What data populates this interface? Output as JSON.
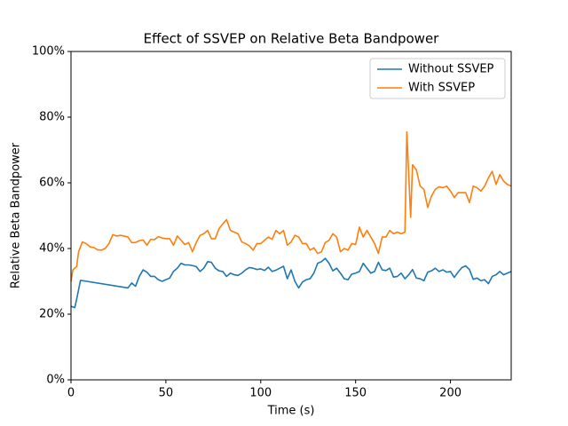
{
  "chart_data": {
    "type": "line",
    "title": "Effect of SSVEP on Relative Beta Bandpower",
    "x_label": "Time (s)",
    "y_label": "Relative Beta Bandpower",
    "xlim": [
      0,
      232
    ],
    "ylim": [
      0,
      100
    ],
    "xticks": [
      0,
      50,
      100,
      150,
      200
    ],
    "yticks": [
      {
        "value": 0,
        "label": "0%"
      },
      {
        "value": 20,
        "label": "20%"
      },
      {
        "value": 40,
        "label": "40%"
      },
      {
        "value": 60,
        "label": "60%"
      },
      {
        "value": 80,
        "label": "80%"
      },
      {
        "value": 100,
        "label": "100%"
      }
    ],
    "legend": "upper right",
    "series": [
      {
        "name": "Without SSVEP",
        "color": "#1f77b4",
        "x": [
          0,
          2,
          3,
          5,
          30,
          32,
          34,
          36,
          38,
          40,
          42,
          44,
          46,
          48,
          50,
          52,
          54,
          56,
          58,
          60,
          62,
          64,
          66,
          68,
          70,
          72,
          74,
          76,
          78,
          80,
          82,
          84,
          86,
          88,
          90,
          92,
          94,
          96,
          98,
          100,
          102,
          104,
          106,
          108,
          110,
          112,
          114,
          116,
          118,
          120,
          122,
          124,
          126,
          128,
          130,
          132,
          134,
          136,
          138,
          140,
          142,
          144,
          146,
          148,
          150,
          152,
          154,
          156,
          158,
          160,
          162,
          164,
          166,
          168,
          170,
          172,
          174,
          176,
          178,
          180,
          182,
          184,
          186,
          188,
          190,
          192,
          194,
          196,
          198,
          200,
          202,
          204,
          206,
          208,
          210,
          212,
          214,
          216,
          218,
          220,
          222,
          224,
          226,
          228,
          230,
          232
        ],
        "values": [
          22.4,
          22,
          24.6,
          30.3,
          28,
          29.5,
          28.5,
          31.5,
          33.5,
          32.8,
          31.5,
          31.5,
          30.5,
          30,
          30.5,
          31,
          33,
          34,
          35.5,
          35,
          35,
          34.8,
          34.5,
          33,
          34,
          36,
          35.8,
          34,
          33.2,
          33,
          31.5,
          32.5,
          32,
          31.8,
          32.5,
          33.5,
          34.2,
          34,
          33.6,
          33.8,
          33.3,
          34.3,
          33,
          33.4,
          34,
          34.6,
          30.8,
          33.5,
          30,
          28,
          29.8,
          30.5,
          30.8,
          32.5,
          35.5,
          36,
          37,
          35.5,
          33.2,
          34,
          32.5,
          30.8,
          30.5,
          32.2,
          32.5,
          33,
          35.5,
          34,
          32.5,
          33,
          35.8,
          33.5,
          33.3,
          34,
          31.3,
          31.5,
          32.5,
          30.8,
          32,
          33.6,
          31,
          30.8,
          30.2,
          32.8,
          33.2,
          34,
          33,
          33.5,
          32.8,
          33,
          31.2,
          32.8,
          34.2,
          34.7,
          33.6,
          30.6,
          31,
          30.2,
          30.5,
          29.3,
          31.5,
          32,
          33,
          32,
          32.5,
          33
        ]
      },
      {
        "name": "With SSVEP",
        "color": "#ff7f0e",
        "x": [
          0,
          1,
          2,
          3,
          4,
          6,
          8,
          10,
          12,
          14,
          16,
          18,
          20,
          22,
          24,
          26,
          28,
          30,
          32,
          34,
          36,
          38,
          40,
          42,
          44,
          46,
          48,
          50,
          52,
          54,
          56,
          58,
          60,
          62,
          64,
          66,
          68,
          70,
          72,
          74,
          76,
          78,
          80,
          82,
          84,
          86,
          88,
          90,
          92,
          94,
          96,
          98,
          100,
          102,
          104,
          106,
          108,
          110,
          112,
          114,
          116,
          118,
          120,
          122,
          124,
          126,
          128,
          130,
          132,
          134,
          136,
          138,
          140,
          142,
          144,
          146,
          148,
          150,
          152,
          154,
          156,
          158,
          160,
          162,
          164,
          166,
          168,
          170,
          172,
          174,
          176,
          177,
          179,
          180,
          182,
          184,
          186,
          188,
          190,
          192,
          194,
          196,
          198,
          200,
          202,
          204,
          206,
          208,
          210,
          212,
          214,
          216,
          218,
          220,
          222,
          224,
          226,
          228,
          230,
          232
        ],
        "values": [
          30,
          33.5,
          34,
          34.5,
          39,
          42,
          41.5,
          40.5,
          40.3,
          39.6,
          39.5,
          40,
          41.5,
          44.2,
          43.8,
          44,
          43.8,
          43.5,
          41.8,
          41.8,
          42.4,
          42.6,
          41,
          42.8,
          42.7,
          43.6,
          43.2,
          43,
          43,
          41,
          43.8,
          42.5,
          41.2,
          41.8,
          39,
          41.8,
          44,
          44.5,
          45.5,
          43,
          43,
          46,
          47.5,
          48.8,
          45.5,
          45,
          44.5,
          42,
          41.5,
          40.8,
          39.5,
          41.5,
          41.5,
          42.5,
          43.5,
          42.8,
          45.5,
          44.5,
          45.5,
          41,
          42,
          44,
          43.5,
          41.5,
          41.5,
          39.5,
          40.2,
          38.5,
          39,
          41.8,
          42.5,
          44.5,
          43.5,
          39,
          40,
          39.5,
          41.5,
          41.2,
          46.5,
          43.5,
          45.5,
          43.5,
          41.5,
          38.5,
          43.5,
          43.5,
          45.5,
          44.5,
          45,
          44.5,
          45,
          75.5,
          49.5,
          65.5,
          64,
          59,
          58,
          52.5,
          56,
          58,
          58.8,
          58.5,
          59,
          57.5,
          55.5,
          57,
          57,
          57,
          54,
          59,
          58.5,
          57.5,
          59,
          61.5,
          63.5,
          59.5,
          62.5,
          60.5,
          59.5,
          59
        ]
      }
    ]
  }
}
